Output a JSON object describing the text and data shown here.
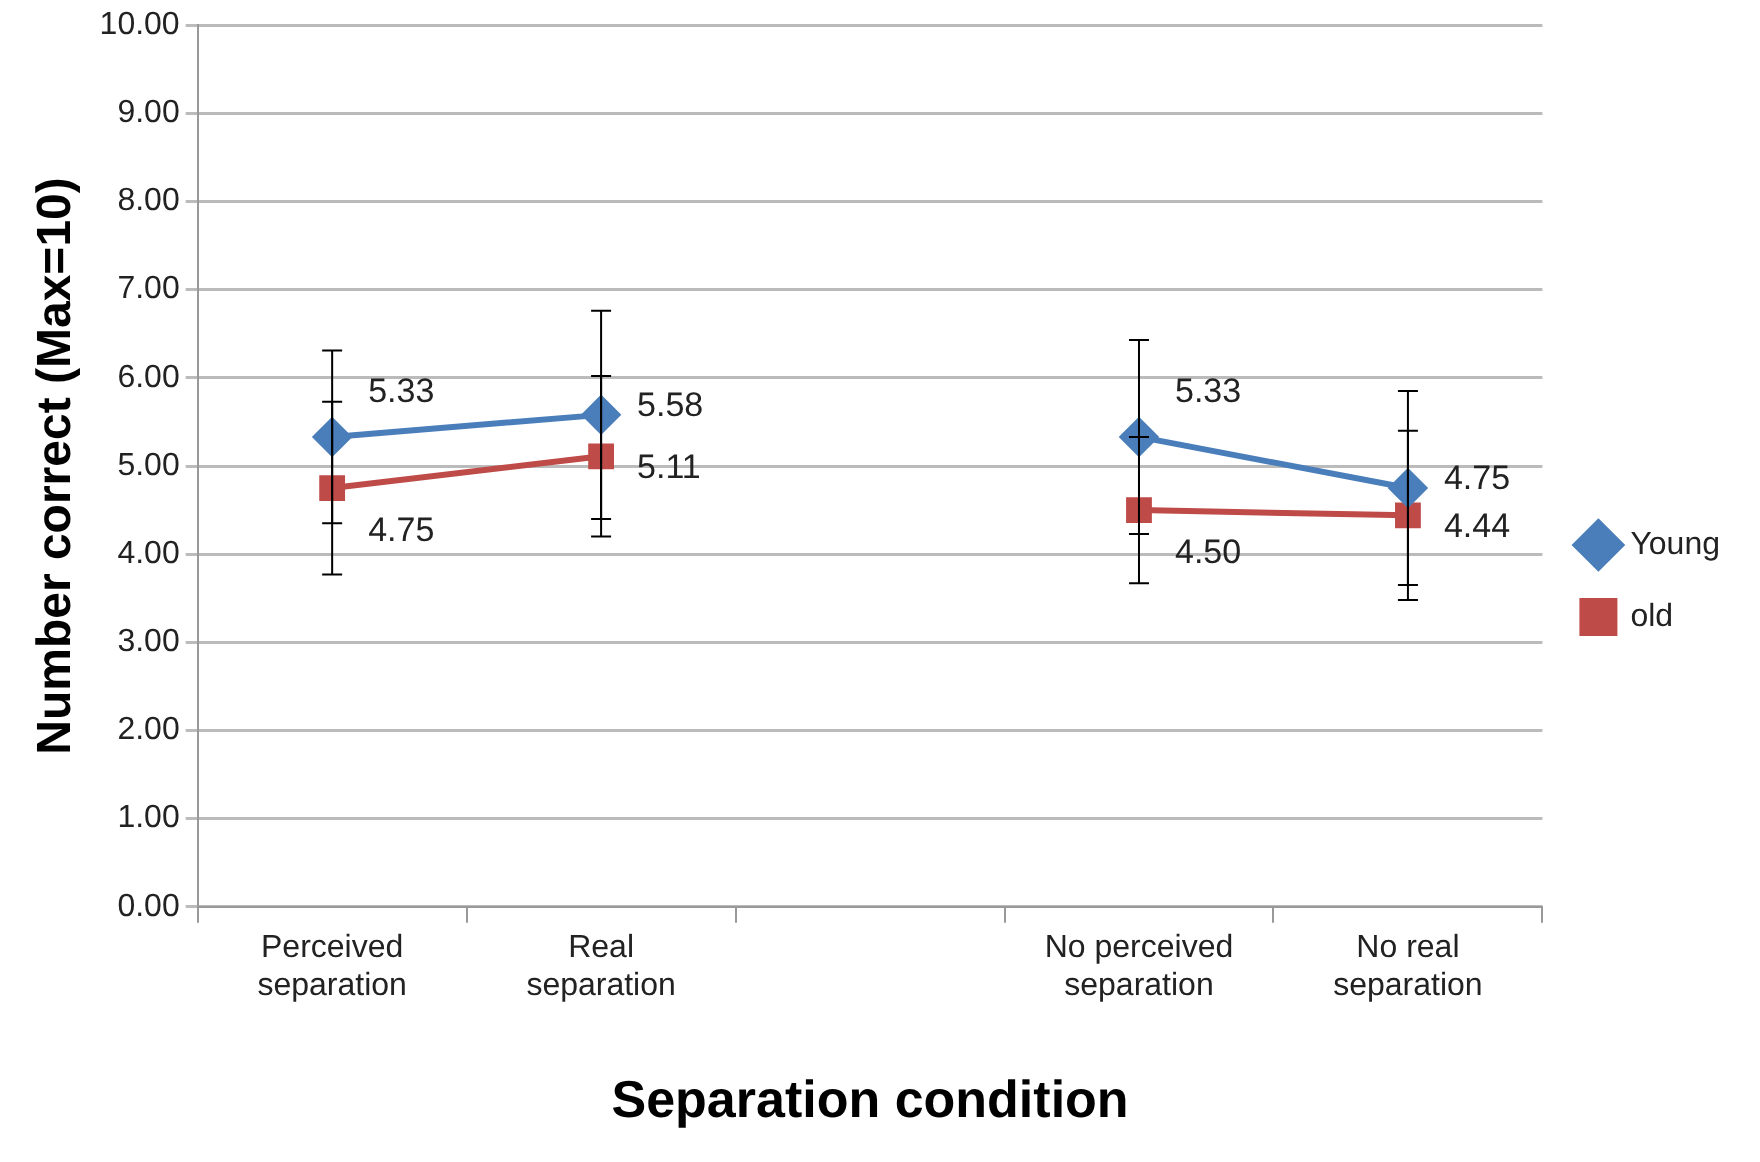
{
  "chart_data": {
    "type": "line",
    "xlabel": "Separation condition",
    "ylabel": "Number correct (Max=10)",
    "categories": [
      "Perceived separation",
      "Real separation",
      null,
      "No perceived separation",
      "No real separation"
    ],
    "series": [
      {
        "name": "Young",
        "color": "#4a7ebb",
        "marker": "diamond",
        "values": [
          5.33,
          5.58,
          null,
          5.33,
          4.75
        ],
        "value_labels": [
          "5.33",
          "5.58",
          null,
          "5.33",
          "4.75"
        ],
        "errors": [
          0.98,
          1.18,
          null,
          1.1,
          1.1
        ]
      },
      {
        "name": "old",
        "color": "#be4b48",
        "marker": "square",
        "values": [
          4.75,
          5.11,
          null,
          4.5,
          4.44
        ],
        "value_labels": [
          "4.75",
          "5.11",
          null,
          "4.50",
          "4.44"
        ],
        "errors": [
          0.98,
          0.91,
          null,
          0.83,
          0.96
        ]
      }
    ],
    "ylim": [
      0,
      10
    ],
    "yticks": [
      {
        "value": 0,
        "label": "0.00"
      },
      {
        "value": 1,
        "label": "1.00"
      },
      {
        "value": 2,
        "label": "2.00"
      },
      {
        "value": 3,
        "label": "3.00"
      },
      {
        "value": 4,
        "label": "4.00"
      },
      {
        "value": 5,
        "label": "5.00"
      },
      {
        "value": 6,
        "label": "6.00"
      },
      {
        "value": 7,
        "label": "7.00"
      },
      {
        "value": 8,
        "label": "8.00"
      },
      {
        "value": 9,
        "label": "9.00"
      },
      {
        "value": 10,
        "label": "10.00"
      }
    ],
    "grid": "y",
    "legend": "right",
    "line_style": "solid"
  }
}
